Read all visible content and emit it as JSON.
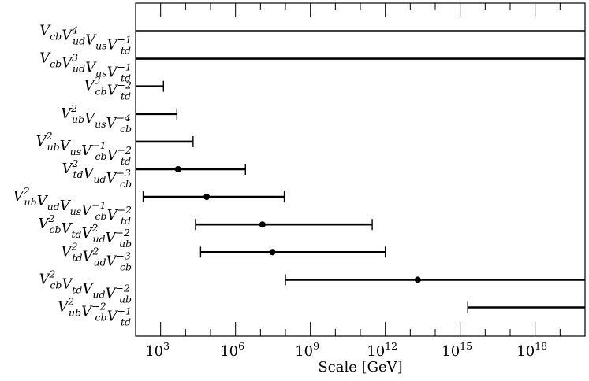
{
  "chart_data": {
    "type": "range-interval",
    "xlabel": "Scale [GeV]",
    "x_scale": "log10",
    "xlim": [
      100,
      1e+20
    ],
    "x_major_ticks": [
      {
        "value": 1000,
        "base": "10",
        "exp": "3"
      },
      {
        "value": 1000000,
        "base": "10",
        "exp": "6"
      },
      {
        "value": 1000000000,
        "base": "10",
        "exp": "9"
      },
      {
        "value": 1000000000000,
        "base": "10",
        "exp": "12"
      },
      {
        "value": 1000000000000000,
        "base": "10",
        "exp": "15"
      },
      {
        "value": 1000000000000000000,
        "base": "10",
        "exp": "18"
      }
    ],
    "rows": [
      {
        "label": [
          {
            "b": "V",
            "sub": "cb"
          },
          {
            "b": "V",
            "sup": "4",
            "sub": "ud"
          },
          {
            "b": "V",
            "sub": "us"
          },
          {
            "b": "V",
            "sup": "−1",
            "sub": "td"
          }
        ],
        "low": 100,
        "high": 1e+20,
        "low_cap": false,
        "high_cap": false,
        "point": null
      },
      {
        "label": [
          {
            "b": "V",
            "sub": "cb"
          },
          {
            "b": "V",
            "sup": "3",
            "sub": "ud"
          },
          {
            "b": "V",
            "sub": "us"
          },
          {
            "b": "V",
            "sup": "−1",
            "sub": "td"
          }
        ],
        "low": 100,
        "high": 1e+20,
        "low_cap": false,
        "high_cap": false,
        "point": null
      },
      {
        "label": [
          {
            "b": "V",
            "sup": "3",
            "sub": "cb"
          },
          {
            "b": "V",
            "sup": "−2",
            "sub": "td"
          }
        ],
        "low": 100,
        "high": 1300,
        "low_cap": false,
        "high_cap": true,
        "point": null
      },
      {
        "label": [
          {
            "b": "V",
            "sup": "2",
            "sub": "ub"
          },
          {
            "b": "V",
            "sub": "us"
          },
          {
            "b": "V",
            "sup": "−4",
            "sub": "cb"
          }
        ],
        "low": 100,
        "high": 4500,
        "low_cap": false,
        "high_cap": true,
        "point": null
      },
      {
        "label": [
          {
            "b": "V",
            "sup": "2",
            "sub": "ub"
          },
          {
            "b": "V",
            "sub": "us"
          },
          {
            "b": "V",
            "sup": "−1",
            "sub": "cb"
          },
          {
            "b": "V",
            "sup": "−2",
            "sub": "td"
          }
        ],
        "low": 100,
        "high": 20000,
        "low_cap": false,
        "high_cap": true,
        "point": null
      },
      {
        "label": [
          {
            "b": "V",
            "sup": "2",
            "sub": "td"
          },
          {
            "b": "V",
            "sub": "ud"
          },
          {
            "b": "V",
            "sup": "−3",
            "sub": "cb"
          }
        ],
        "low": 100,
        "high": 2500000,
        "low_cap": false,
        "high_cap": true,
        "point": 5000
      },
      {
        "label": [
          {
            "b": "V",
            "sup": "2",
            "sub": "ub"
          },
          {
            "b": "V",
            "sub": "ud"
          },
          {
            "b": "V",
            "sub": "us"
          },
          {
            "b": "V",
            "sup": "−1",
            "sub": "cb"
          },
          {
            "b": "V",
            "sup": "−2",
            "sub": "td"
          }
        ],
        "low": 200,
        "high": 90000000,
        "low_cap": true,
        "high_cap": true,
        "point": 70000
      },
      {
        "label": [
          {
            "b": "V",
            "sup": "2",
            "sub": "cb"
          },
          {
            "b": "V",
            "sub": "td"
          },
          {
            "b": "V",
            "sup": "2",
            "sub": "ud"
          },
          {
            "b": "V",
            "sup": "−2",
            "sub": "ub"
          }
        ],
        "low": 25000,
        "high": 300000000000,
        "low_cap": true,
        "high_cap": true,
        "point": 12000000
      },
      {
        "label": [
          {
            "b": "V",
            "sup": "2",
            "sub": "td"
          },
          {
            "b": "V",
            "sup": "2",
            "sub": "ud"
          },
          {
            "b": "V",
            "sup": "−3",
            "sub": "cb"
          }
        ],
        "low": 40000,
        "high": 1000000000000,
        "low_cap": true,
        "high_cap": true,
        "point": 30000000
      },
      {
        "label": [
          {
            "b": "V",
            "sup": "2",
            "sub": "cb"
          },
          {
            "b": "V",
            "sub": "td"
          },
          {
            "b": "V",
            "sub": "ud"
          },
          {
            "b": "V",
            "sup": "−2",
            "sub": "ub"
          }
        ],
        "low": 100000000,
        "high": 1e+20,
        "low_cap": true,
        "high_cap": false,
        "point": 20000000000000
      },
      {
        "label": [
          {
            "b": "V",
            "sup": "2",
            "sub": "ub"
          },
          {
            "b": "V",
            "sup": "−2",
            "sub": "cb"
          },
          {
            "b": "V",
            "sup": "−1",
            "sub": "td"
          }
        ],
        "low": 2000000000000000,
        "high": 1e+20,
        "low_cap": true,
        "high_cap": false,
        "point": null
      }
    ]
  }
}
